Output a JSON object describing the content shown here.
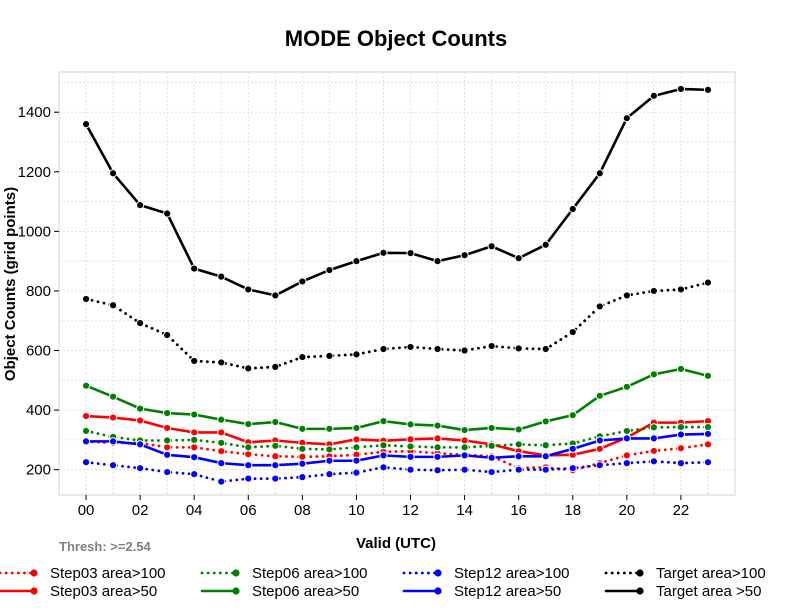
{
  "chart_data": {
    "type": "line",
    "title": "MODE Object Counts",
    "xlabel": "Valid (UTC)",
    "ylabel": "Object Counts (grid points)",
    "annotation": "Thresh: >=2.54",
    "x": [
      0,
      1,
      2,
      3,
      4,
      5,
      6,
      7,
      8,
      9,
      10,
      11,
      12,
      13,
      14,
      15,
      16,
      17,
      18,
      19,
      20,
      21,
      22,
      23
    ],
    "xticks": [
      0,
      2,
      4,
      6,
      8,
      10,
      12,
      14,
      16,
      18,
      20,
      22
    ],
    "xtick_labels": [
      "00",
      "02",
      "04",
      "06",
      "08",
      "10",
      "12",
      "14",
      "16",
      "18",
      "20",
      "22"
    ],
    "xlim": [
      -1,
      24
    ],
    "ylim": [
      115,
      1535
    ],
    "yticks": [
      200,
      400,
      600,
      800,
      1000,
      1200,
      1400
    ],
    "ytick_labels": [
      "200",
      "400",
      "600",
      "800",
      "1000",
      "1200",
      "1400"
    ],
    "grid": true,
    "legend_position": "bottom",
    "series": [
      {
        "name": "Step03 area>100",
        "color": "#ff0000",
        "style": "dotted",
        "values": [
          295,
          290,
          290,
          275,
          275,
          262,
          252,
          245,
          243,
          245,
          250,
          260,
          262,
          255,
          250,
          245,
          205,
          208,
          198,
          222,
          248,
          263,
          272,
          285
        ]
      },
      {
        "name": "Step03 area>50",
        "color": "#ff0000",
        "style": "solid",
        "values": [
          380,
          375,
          365,
          340,
          325,
          325,
          292,
          298,
          290,
          285,
          302,
          297,
          302,
          305,
          298,
          285,
          262,
          248,
          250,
          270,
          308,
          358,
          358,
          363
        ]
      },
      {
        "name": "Step06 area>100",
        "color": "#008000",
        "style": "dotted",
        "values": [
          330,
          310,
          298,
          298,
          300,
          290,
          275,
          280,
          270,
          268,
          275,
          282,
          278,
          275,
          275,
          280,
          285,
          282,
          288,
          312,
          330,
          342,
          343,
          343
        ]
      },
      {
        "name": "Step06 area>50",
        "color": "#008000",
        "style": "solid",
        "values": [
          482,
          445,
          405,
          390,
          385,
          368,
          353,
          360,
          337,
          337,
          340,
          363,
          352,
          348,
          333,
          340,
          335,
          362,
          383,
          448,
          478,
          520,
          538,
          515
        ]
      },
      {
        "name": "Step12 area>100",
        "color": "#0000ff",
        "style": "dotted",
        "values": [
          225,
          215,
          205,
          192,
          185,
          160,
          170,
          170,
          175,
          185,
          190,
          208,
          200,
          198,
          200,
          192,
          200,
          200,
          205,
          215,
          222,
          228,
          222,
          225
        ]
      },
      {
        "name": "Step12 area>50",
        "color": "#0000ff",
        "style": "solid",
        "values": [
          295,
          295,
          285,
          250,
          242,
          222,
          215,
          215,
          220,
          230,
          230,
          248,
          243,
          243,
          248,
          240,
          245,
          245,
          270,
          298,
          305,
          305,
          318,
          320
        ]
      },
      {
        "name": "Target area>100",
        "color": "#000000",
        "style": "dotted",
        "values": [
          773,
          752,
          692,
          652,
          565,
          560,
          540,
          545,
          578,
          582,
          587,
          605,
          612,
          605,
          600,
          615,
          607,
          605,
          662,
          748,
          785,
          800,
          805,
          828
        ]
      },
      {
        "name": "Target area >50",
        "color": "#000000",
        "style": "solid",
        "values": [
          1360,
          1195,
          1088,
          1060,
          875,
          848,
          805,
          785,
          832,
          870,
          900,
          928,
          927,
          900,
          920,
          950,
          910,
          955,
          1075,
          1195,
          1380,
          1455,
          1478,
          1475
        ]
      }
    ]
  }
}
